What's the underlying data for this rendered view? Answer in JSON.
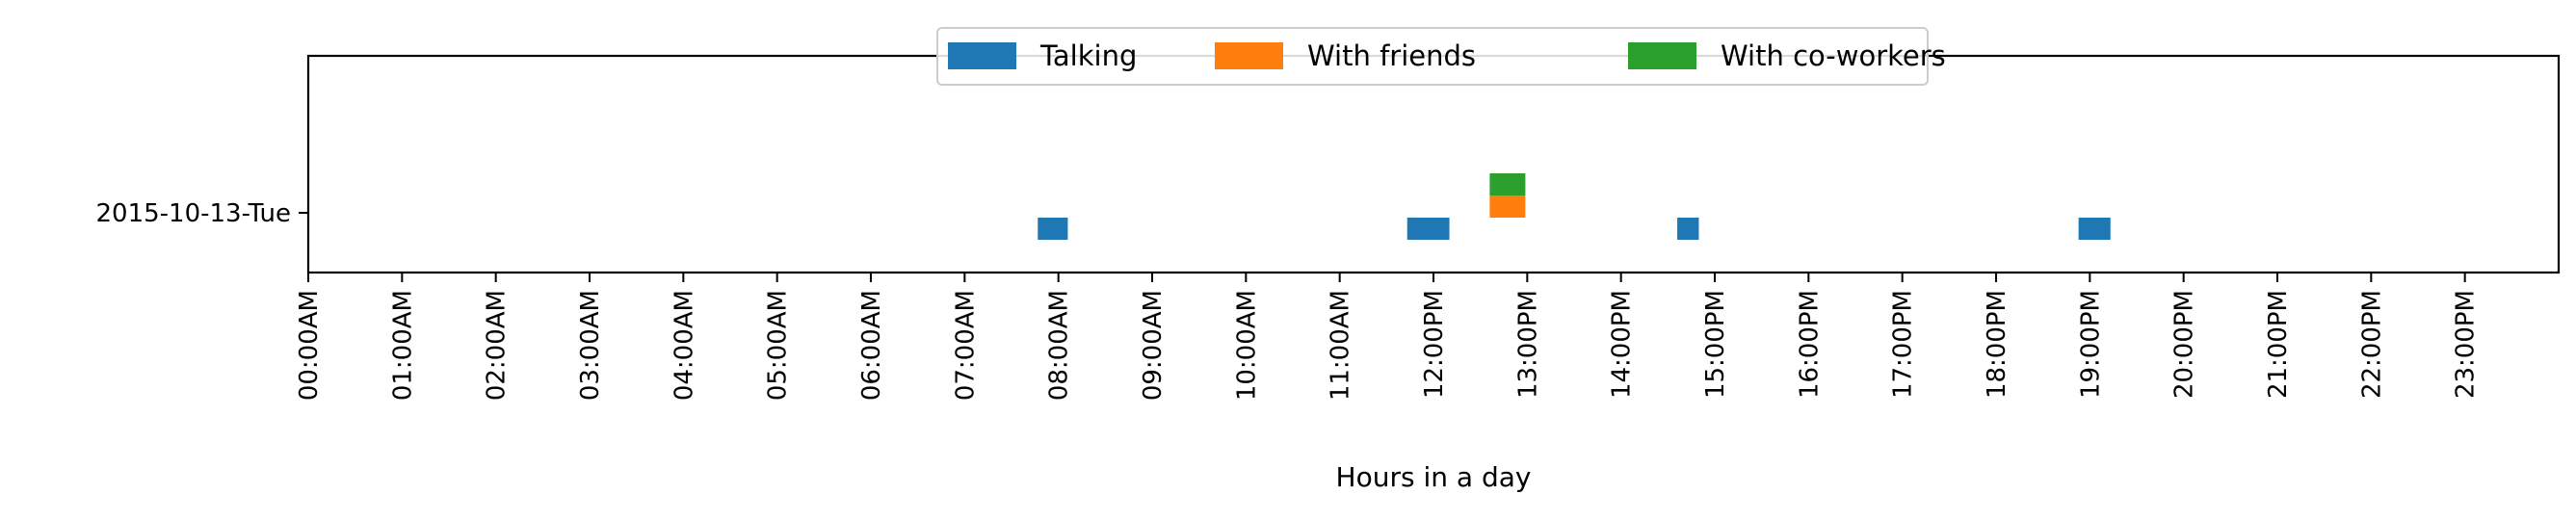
{
  "chart_data": {
    "type": "bar",
    "subtype": "timeline",
    "xlabel": "Hours in a day",
    "ylabel": "",
    "xlim": [
      0,
      24
    ],
    "x_ticks": [
      0,
      1,
      2,
      3,
      4,
      5,
      6,
      7,
      8,
      9,
      10,
      11,
      12,
      13,
      14,
      15,
      16,
      17,
      18,
      19,
      20,
      21,
      22,
      23
    ],
    "x_tick_labels": [
      "00:00AM",
      "01:00AM",
      "02:00AM",
      "03:00AM",
      "04:00AM",
      "05:00AM",
      "06:00AM",
      "07:00AM",
      "08:00AM",
      "09:00AM",
      "10:00AM",
      "11:00AM",
      "12:00PM",
      "13:00PM",
      "14:00PM",
      "15:00PM",
      "16:00PM",
      "17:00PM",
      "18:00PM",
      "19:00PM",
      "20:00PM",
      "21:00PM",
      "22:00PM",
      "23:00PM"
    ],
    "categories": [
      "2015-10-13-Tue"
    ],
    "grid": false,
    "legend": {
      "placement": "top-center"
    },
    "series": [
      {
        "name": "Talking",
        "color": "#1f77b4",
        "level": 0,
        "intervals": [
          [
            7.78,
            8.1
          ],
          [
            11.72,
            12.17
          ],
          [
            14.6,
            14.83
          ],
          [
            18.88,
            19.22
          ]
        ]
      },
      {
        "name": "With friends",
        "color": "#ff7f0e",
        "level": 1,
        "intervals": [
          [
            12.6,
            12.98
          ]
        ]
      },
      {
        "name": "With co-workers",
        "color": "#2ca02c",
        "level": 2,
        "intervals": [
          [
            12.6,
            12.98
          ]
        ]
      }
    ]
  }
}
